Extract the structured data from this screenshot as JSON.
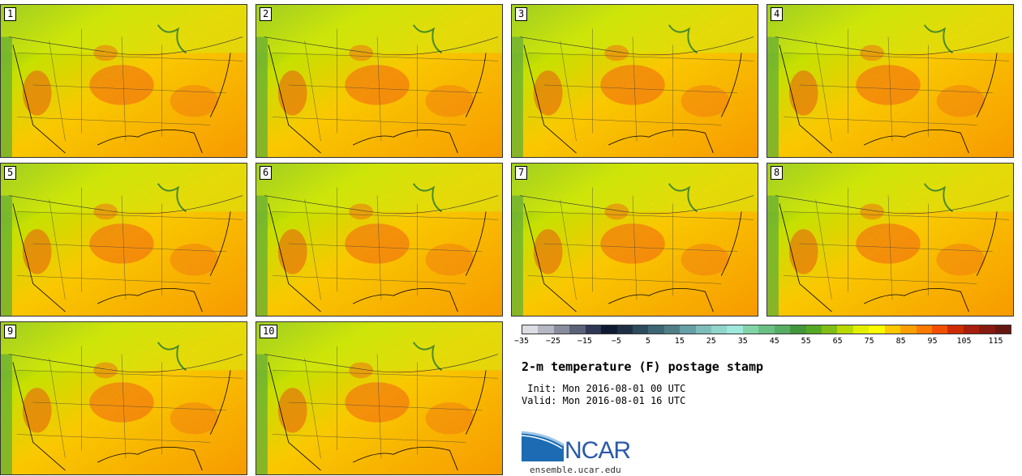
{
  "panels": [
    {
      "label": "1"
    },
    {
      "label": "2"
    },
    {
      "label": "3"
    },
    {
      "label": "4"
    },
    {
      "label": "5"
    },
    {
      "label": "6"
    },
    {
      "label": "7"
    },
    {
      "label": "8"
    },
    {
      "label": "9"
    },
    {
      "label": "10"
    }
  ],
  "colorbar": {
    "colors": [
      "#dcdde2",
      "#b5b7c2",
      "#888c9c",
      "#5b6278",
      "#2f3755",
      "#0f1a30",
      "#1e2f45",
      "#2e4b5e",
      "#3e6573",
      "#4f7f85",
      "#669fa6",
      "#7dbcb9",
      "#8fd5cb",
      "#9ee8dc",
      "#82d4a8",
      "#6ac083",
      "#58ad65",
      "#41973a",
      "#55a823",
      "#80be15",
      "#b9d800",
      "#e3ee00",
      "#fcfb00",
      "#fcc800",
      "#fba000",
      "#fb7a00",
      "#f24f00",
      "#cc2c00",
      "#a81e0c",
      "#871a10",
      "#661810"
    ],
    "ticks": [
      "-35",
      "-25",
      "-15",
      "-5",
      "5",
      "15",
      "25",
      "35",
      "45",
      "55",
      "65",
      "75",
      "85",
      "95",
      "105",
      "115"
    ]
  },
  "title": "2-m temperature (F) postage stamp",
  "init_line": " Init: Mon 2016-08-01 00 UTC",
  "valid_line": "Valid: Mon 2016-08-01 16 UTC",
  "logo": {
    "text": "NCAR",
    "url": "ensemble.ucar.edu"
  }
}
